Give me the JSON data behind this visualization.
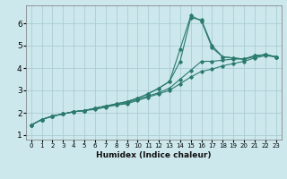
{
  "title": "",
  "xlabel": "Humidex (Indice chaleur)",
  "ylabel": "",
  "xlim": [
    -0.5,
    23.5
  ],
  "ylim": [
    0.8,
    6.8
  ],
  "xticks": [
    0,
    1,
    2,
    3,
    4,
    5,
    6,
    7,
    8,
    9,
    10,
    11,
    12,
    13,
    14,
    15,
    16,
    17,
    18,
    19,
    20,
    21,
    22,
    23
  ],
  "yticks": [
    1,
    2,
    3,
    4,
    5,
    6
  ],
  "background_color": "#cde8ec",
  "grid_color": "#aacdd4",
  "line_color": "#2a7a6e",
  "series": [
    {
      "x": [
        0,
        1,
        2,
        3,
        4,
        5,
        6,
        7,
        8,
        9,
        10,
        11,
        12,
        13,
        14,
        15,
        16,
        17,
        18,
        19,
        20,
        21,
        22,
        23
      ],
      "y": [
        1.45,
        1.7,
        1.85,
        1.95,
        2.05,
        2.1,
        2.2,
        2.3,
        2.4,
        2.5,
        2.65,
        2.85,
        3.1,
        3.4,
        4.3,
        6.25,
        6.15,
        5.0,
        4.5,
        4.45,
        4.4,
        4.55,
        4.6,
        4.5
      ]
    },
    {
      "x": [
        0,
        1,
        2,
        3,
        4,
        5,
        6,
        7,
        8,
        9,
        10,
        11,
        12,
        13,
        14,
        15,
        16,
        17,
        18,
        19,
        20,
        21,
        22,
        23
      ],
      "y": [
        1.45,
        1.7,
        1.85,
        1.95,
        2.05,
        2.1,
        2.2,
        2.3,
        2.4,
        2.5,
        2.65,
        2.85,
        3.1,
        3.4,
        4.85,
        6.35,
        6.1,
        4.9,
        4.5,
        4.45,
        4.4,
        4.55,
        4.6,
        4.5
      ]
    },
    {
      "x": [
        0,
        1,
        2,
        3,
        4,
        5,
        6,
        7,
        8,
        9,
        10,
        11,
        12,
        13,
        14,
        15,
        16,
        17,
        18,
        19,
        20,
        21,
        22,
        23
      ],
      "y": [
        1.45,
        1.7,
        1.85,
        1.95,
        2.05,
        2.1,
        2.2,
        2.3,
        2.35,
        2.45,
        2.6,
        2.75,
        2.9,
        3.1,
        3.5,
        3.9,
        4.3,
        4.3,
        4.35,
        4.4,
        4.4,
        4.5,
        4.6,
        4.5
      ]
    },
    {
      "x": [
        0,
        1,
        2,
        3,
        4,
        5,
        6,
        7,
        8,
        9,
        10,
        11,
        12,
        13,
        14,
        15,
        16,
        17,
        18,
        19,
        20,
        21,
        22,
        23
      ],
      "y": [
        1.45,
        1.7,
        1.85,
        1.95,
        2.05,
        2.1,
        2.15,
        2.25,
        2.35,
        2.4,
        2.55,
        2.7,
        2.85,
        3.0,
        3.3,
        3.6,
        3.85,
        3.95,
        4.1,
        4.2,
        4.3,
        4.45,
        4.55,
        4.5
      ]
    }
  ]
}
